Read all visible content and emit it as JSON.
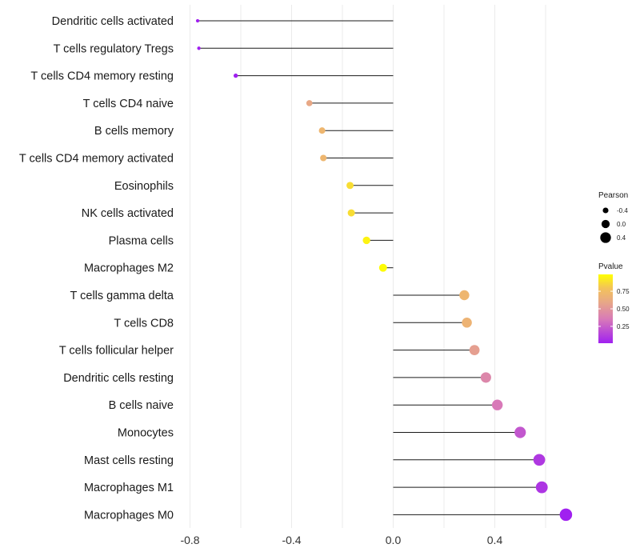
{
  "chart_data": {
    "type": "lollipop",
    "x_range": [
      -0.8,
      0.68
    ],
    "xticks": [
      -0.8,
      -0.4,
      0.0,
      0.4
    ],
    "tick_labels": [
      "-0.8",
      "-0.4",
      "0.0",
      "0.4"
    ],
    "minor_ticks": [
      -0.6,
      -0.2,
      0.2,
      0.6
    ],
    "categories": [
      "Dendritic cells activated",
      "T cells regulatory  Tregs",
      "T cells CD4 memory resting",
      "T cells CD4 naive",
      "B cells memory",
      "T cells CD4 memory activated",
      "Eosinophils",
      "NK cells activated",
      "Plasma cells",
      "Macrophages M2",
      "T cells gamma delta",
      "T cells CD8",
      "T cells follicular helper",
      "Dendritic cells resting",
      "B cells naive",
      "Monocytes",
      "Mast cells resting",
      "Macrophages M1",
      "Macrophages M0"
    ],
    "values": [
      -0.77,
      -0.765,
      -0.62,
      -0.33,
      -0.28,
      -0.275,
      -0.17,
      -0.165,
      -0.105,
      -0.04,
      0.28,
      0.29,
      0.32,
      0.365,
      0.41,
      0.5,
      0.575,
      0.585,
      0.68
    ],
    "pvalues": [
      0.001,
      0.001,
      0.01,
      0.6,
      0.7,
      0.7,
      0.88,
      0.88,
      0.95,
      0.98,
      0.7,
      0.68,
      0.55,
      0.42,
      0.35,
      0.22,
      0.1,
      0.09,
      0.01
    ],
    "legend": {
      "size_title": "Pearson",
      "size_labels": [
        "-0.4",
        "0.0",
        "0.4"
      ],
      "size_values": [
        -0.4,
        0.0,
        0.4
      ],
      "color_title": "Pvalue",
      "color_ticks": [
        0.75,
        0.5,
        0.25
      ],
      "color_tick_labels": [
        "0.75",
        "0.50",
        "0.25"
      ],
      "color_range": [
        0.01,
        0.99
      ],
      "colors": [
        "#a020f0",
        "#d87ab8",
        "#e8a886",
        "#f3c35a",
        "#ffff00"
      ]
    }
  }
}
